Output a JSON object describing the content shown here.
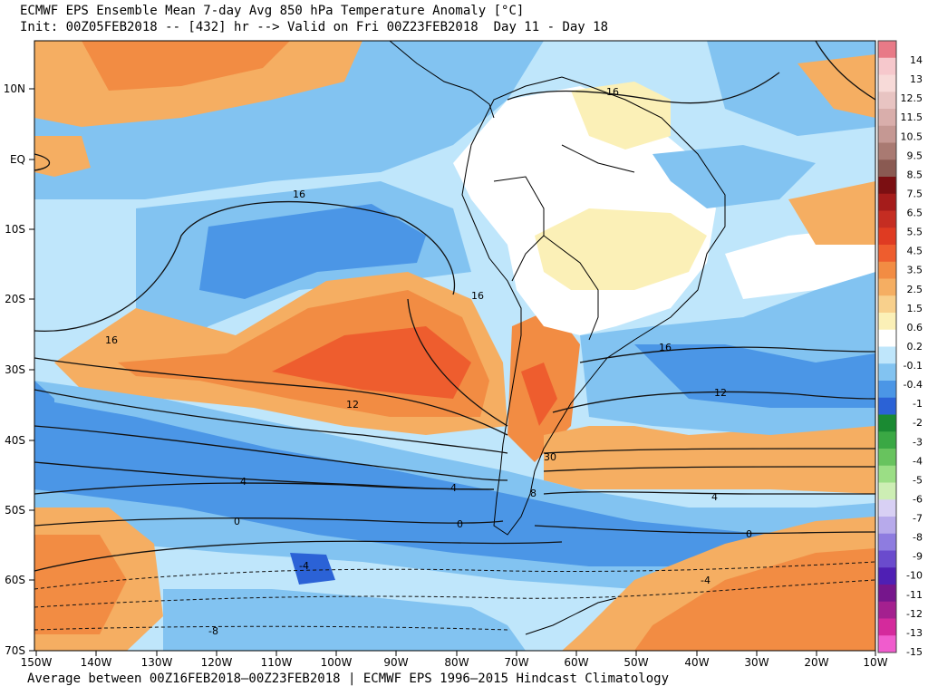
{
  "header": {
    "title": "ECMWF EPS Ensemble Mean 7-day Avg 850 hPa Temperature Anomaly [°C]",
    "subtitle": "Init: 00Z05FEB2018 -- [432] hr --> Valid on Fri 00Z23FEB2018  Day 11 - Day 18"
  },
  "footer": {
    "text": "Average between 00Z16FEB2018–00Z23FEB2018 | ECMWF EPS 1996–2015 Hindcast Climatology"
  },
  "map": {
    "lat_labels": [
      "10N",
      "EQ",
      "10S",
      "20S",
      "30S",
      "40S",
      "50S",
      "60S",
      "70S"
    ],
    "lon_labels": [
      "150W",
      "140W",
      "130W",
      "120W",
      "110W",
      "100W",
      "90W",
      "80W",
      "70W",
      "60W",
      "50W",
      "40W",
      "30W",
      "20W",
      "10W"
    ],
    "contour_labels": [
      "16",
      "16",
      "16",
      "16",
      "16",
      "12",
      "12",
      "4",
      "4",
      "4",
      "0",
      "0",
      "0",
      "-4",
      "-4",
      "-8",
      "8",
      "30"
    ]
  },
  "colorbar": {
    "labels": [
      "14",
      "13",
      "12.5",
      "11.5",
      "10.5",
      "9.5",
      "8.5",
      "7.5",
      "6.5",
      "5.5",
      "4.5",
      "3.5",
      "2.5",
      "1.5",
      "0.6",
      "0.2",
      "-0.1",
      "-0.4",
      "-1",
      "-2",
      "-3",
      "-4",
      "-5",
      "-6",
      "-7",
      "-8",
      "-9",
      "-10",
      "-11",
      "-12",
      "-13",
      "-15"
    ],
    "colors": [
      "#e87a87",
      "#f6c8cc",
      "#f7dad8",
      "#e8c4c2",
      "#d9aeab",
      "#c59893",
      "#a97a72",
      "#8a5a52",
      "#7b0f12",
      "#a51c1b",
      "#c52d22",
      "#df3b22",
      "#ee5d2e",
      "#f28c43",
      "#f5ae62",
      "#f8d08c",
      "#fbf0b7",
      "#ffffff",
      "#bfe6fb",
      "#82c3f1",
      "#4b96e6",
      "#2b62d6",
      "#1a8a32",
      "#3aa844",
      "#68c35e",
      "#9bde85",
      "#cdeeb4",
      "#d8d0f4",
      "#b7aaeb",
      "#8e7ce0",
      "#6a4bcd",
      "#4f1fb4",
      "#76168c",
      "#a4208f",
      "#d42a9c",
      "#f05ccd"
    ]
  }
}
